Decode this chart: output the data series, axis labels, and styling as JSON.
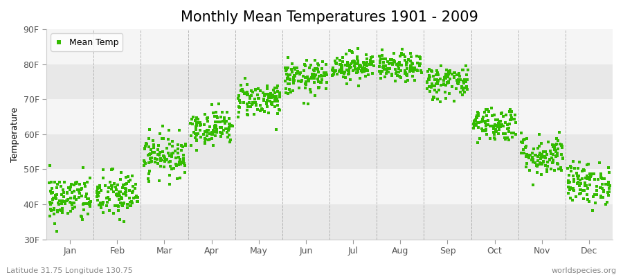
{
  "title": "Monthly Mean Temperatures 1901 - 2009",
  "ylabel": "Temperature",
  "xlabel_bottom_left": "Latitude 31.75 Longitude 130.75",
  "xlabel_bottom_right": "worldspecies.org",
  "ylim": [
    30,
    90
  ],
  "ytick_labels": [
    "30F",
    "40F",
    "50F",
    "60F",
    "70F",
    "80F",
    "90F"
  ],
  "ytick_values": [
    30,
    40,
    50,
    60,
    70,
    80,
    90
  ],
  "months": [
    "Jan",
    "Feb",
    "Mar",
    "Apr",
    "May",
    "Jun",
    "Jul",
    "Aug",
    "Sep",
    "Oct",
    "Nov",
    "Dec"
  ],
  "month_mean_temps_F": [
    41.5,
    42.5,
    54.0,
    62.0,
    70.0,
    76.0,
    79.5,
    79.0,
    75.0,
    63.0,
    54.0,
    46.0
  ],
  "month_std_F": [
    3.5,
    3.5,
    3.0,
    2.5,
    2.5,
    2.5,
    2.0,
    2.0,
    2.5,
    2.5,
    3.0,
    3.0
  ],
  "n_years": 109,
  "marker_color": "#33bb00",
  "marker": "s",
  "marker_size": 2.5,
  "bg_color": "#ffffff",
  "band_color_light": "#f5f5f5",
  "band_color_dark": "#e8e8e8",
  "grid_color": "#999999",
  "title_fontsize": 15,
  "label_fontsize": 9,
  "tick_fontsize": 9
}
